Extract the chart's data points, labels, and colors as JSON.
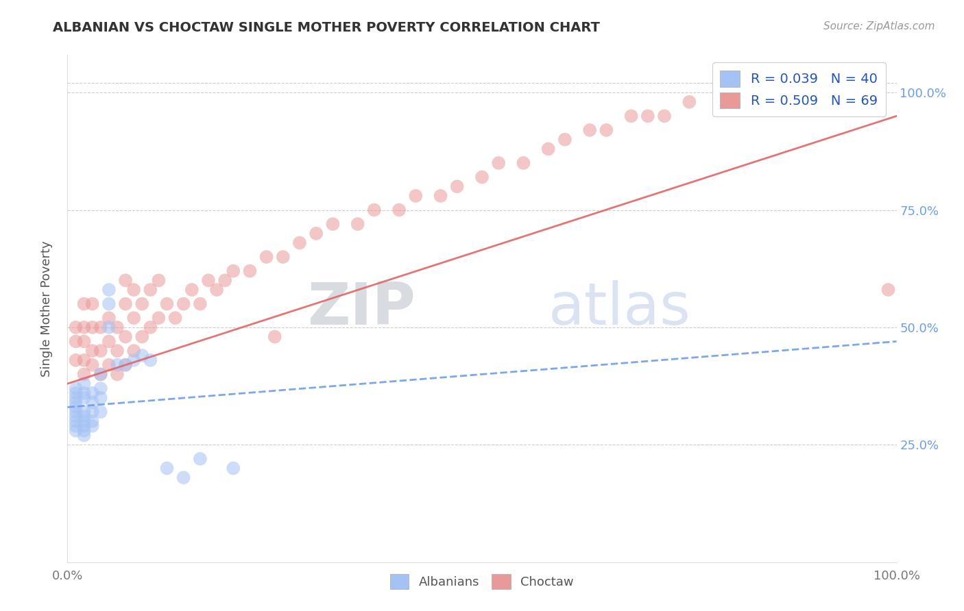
{
  "title": "ALBANIAN VS CHOCTAW SINGLE MOTHER POVERTY CORRELATION CHART",
  "source": "Source: ZipAtlas.com",
  "ylabel": "Single Mother Poverty",
  "legend_label1": "R = 0.039   N = 40",
  "legend_label2": "R = 0.509   N = 69",
  "legend_name1": "Albanians",
  "legend_name2": "Choctaw",
  "watermark_zip": "ZIP",
  "watermark_atlas": "atlas",
  "blue_color": "#a4c2f4",
  "pink_color": "#ea9999",
  "blue_line_color": "#6d9eeb",
  "pink_line_color": "#e06666",
  "albanians_x": [
    0.01,
    0.01,
    0.01,
    0.01,
    0.01,
    0.01,
    0.01,
    0.01,
    0.01,
    0.01,
    0.02,
    0.02,
    0.02,
    0.02,
    0.02,
    0.02,
    0.02,
    0.02,
    0.02,
    0.03,
    0.03,
    0.03,
    0.03,
    0.03,
    0.04,
    0.04,
    0.04,
    0.04,
    0.05,
    0.05,
    0.05,
    0.06,
    0.07,
    0.08,
    0.09,
    0.1,
    0.12,
    0.14,
    0.16,
    0.2
  ],
  "albanians_y": [
    0.3,
    0.31,
    0.32,
    0.33,
    0.34,
    0.35,
    0.36,
    0.37,
    0.28,
    0.29,
    0.3,
    0.31,
    0.32,
    0.28,
    0.29,
    0.35,
    0.36,
    0.38,
    0.27,
    0.32,
    0.34,
    0.36,
    0.3,
    0.29,
    0.32,
    0.35,
    0.37,
    0.4,
    0.55,
    0.58,
    0.5,
    0.42,
    0.42,
    0.43,
    0.44,
    0.43,
    0.2,
    0.18,
    0.22,
    0.2
  ],
  "choctaw_x": [
    0.01,
    0.01,
    0.01,
    0.02,
    0.02,
    0.02,
    0.02,
    0.02,
    0.03,
    0.03,
    0.03,
    0.03,
    0.04,
    0.04,
    0.04,
    0.05,
    0.05,
    0.05,
    0.06,
    0.06,
    0.06,
    0.07,
    0.07,
    0.07,
    0.07,
    0.08,
    0.08,
    0.08,
    0.09,
    0.09,
    0.1,
    0.1,
    0.11,
    0.11,
    0.12,
    0.13,
    0.14,
    0.15,
    0.16,
    0.17,
    0.18,
    0.19,
    0.2,
    0.22,
    0.24,
    0.25,
    0.26,
    0.28,
    0.3,
    0.32,
    0.35,
    0.37,
    0.4,
    0.42,
    0.45,
    0.47,
    0.5,
    0.52,
    0.55,
    0.58,
    0.6,
    0.63,
    0.65,
    0.68,
    0.7,
    0.72,
    0.75,
    0.98,
    0.99
  ],
  "choctaw_y": [
    0.43,
    0.47,
    0.5,
    0.4,
    0.43,
    0.47,
    0.5,
    0.55,
    0.42,
    0.45,
    0.5,
    0.55,
    0.4,
    0.45,
    0.5,
    0.42,
    0.47,
    0.52,
    0.4,
    0.45,
    0.5,
    0.42,
    0.48,
    0.55,
    0.6,
    0.45,
    0.52,
    0.58,
    0.48,
    0.55,
    0.5,
    0.58,
    0.52,
    0.6,
    0.55,
    0.52,
    0.55,
    0.58,
    0.55,
    0.6,
    0.58,
    0.6,
    0.62,
    0.62,
    0.65,
    0.48,
    0.65,
    0.68,
    0.7,
    0.72,
    0.72,
    0.75,
    0.75,
    0.78,
    0.78,
    0.8,
    0.82,
    0.85,
    0.85,
    0.88,
    0.9,
    0.92,
    0.92,
    0.95,
    0.95,
    0.95,
    0.98,
    1.0,
    0.58
  ],
  "xlim": [
    0.0,
    1.0
  ],
  "ylim": [
    0.0,
    1.08
  ],
  "yticks": [
    0.25,
    0.5,
    0.75,
    1.0
  ],
  "ytick_labels": [
    "25.0%",
    "50.0%",
    "75.0%",
    "100.0%"
  ],
  "alb_line_x0": 0.0,
  "alb_line_x1": 1.0,
  "alb_line_y0": 0.33,
  "alb_line_y1": 0.47,
  "cho_line_x0": 0.0,
  "cho_line_x1": 1.0,
  "cho_line_y0": 0.38,
  "cho_line_y1": 0.95,
  "title_color": "#333333",
  "source_color": "#999999"
}
